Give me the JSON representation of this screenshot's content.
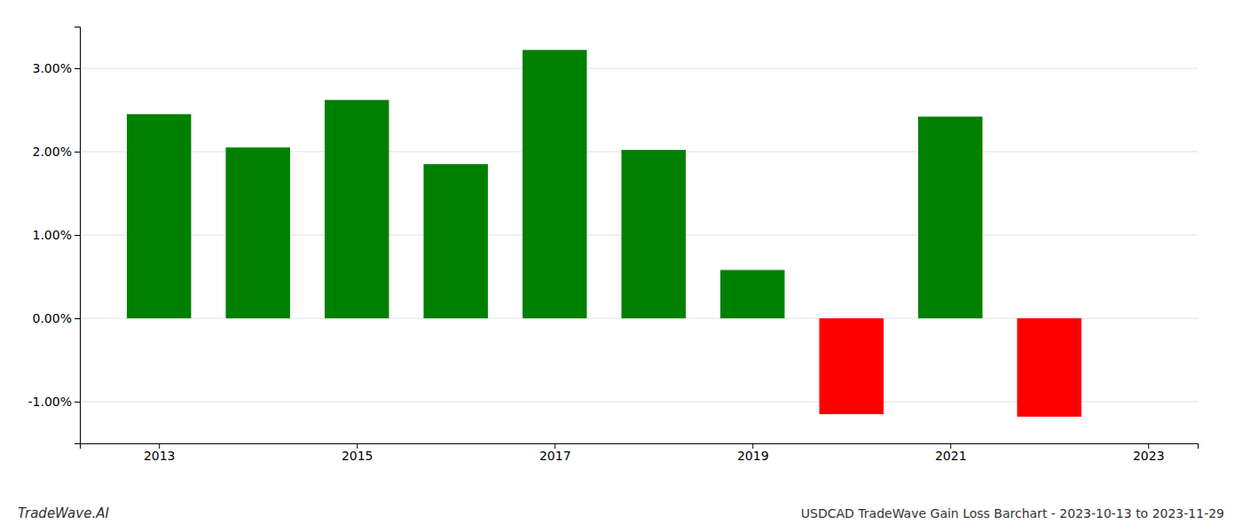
{
  "chart_data": {
    "type": "bar",
    "title": "USDCAD TradeWave Gain Loss Barchart - 2023-10-13 to 2023-11-29",
    "annotations": [
      "TradeWave.AI"
    ],
    "x": [
      2013,
      2014,
      2015,
      2016,
      2017,
      2018,
      2019,
      2020,
      2021,
      2022
    ],
    "values": [
      0.0245,
      0.0205,
      0.0262,
      0.0185,
      0.0322,
      0.0202,
      0.0058,
      -0.0115,
      0.0242,
      -0.0118
    ],
    "colors": [
      "#008000",
      "#008000",
      "#008000",
      "#008000",
      "#008000",
      "#008000",
      "#008000",
      "#ff0000",
      "#008000",
      "#ff0000"
    ],
    "xlim": [
      2012.2,
      2023.5
    ],
    "xticks": [
      2013,
      2015,
      2017,
      2019,
      2021,
      2023
    ],
    "ylim": [
      -0.015,
      0.035
    ],
    "yticks": [
      {
        "value": -0.01,
        "label": "-1.00%"
      },
      {
        "value": 0.0,
        "label": "0.00%"
      },
      {
        "value": 0.01,
        "label": "1.00%"
      },
      {
        "value": 0.02,
        "label": "2.00%"
      },
      {
        "value": 0.03,
        "label": "3.00%"
      }
    ],
    "grid": true
  }
}
